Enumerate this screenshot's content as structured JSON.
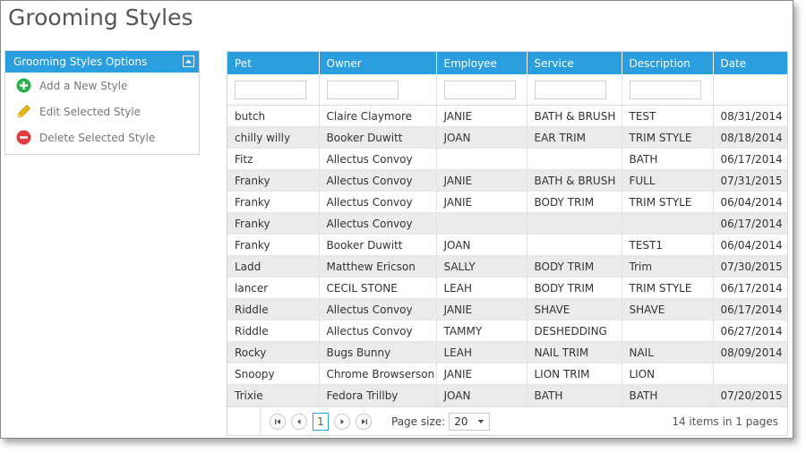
{
  "page": {
    "title": "Grooming Styles"
  },
  "sidebar": {
    "header": "Grooming Styles Options",
    "items": [
      {
        "label": "Add a New Style",
        "icon": "add-circle-icon",
        "color": "#2bb24c"
      },
      {
        "label": "Edit Selected Style",
        "icon": "pencil-icon",
        "color": "#e8b90c"
      },
      {
        "label": "Delete Selected Style",
        "icon": "delete-circle-icon",
        "color": "#e23b3b"
      }
    ]
  },
  "grid": {
    "columns": [
      "Pet",
      "Owner",
      "Employee",
      "Service",
      "Description",
      "Date"
    ],
    "rows": [
      [
        "butch",
        "Claire Claymore",
        "JANIE",
        "BATH & BRUSH",
        "TEST",
        "08/31/2014"
      ],
      [
        "chilly willy",
        "Booker Duwitt",
        "JOAN",
        "EAR TRIM",
        "TRIM STYLE",
        "08/18/2014"
      ],
      [
        "Fitz",
        "Allectus Convoy",
        "",
        "",
        "BATH",
        "06/17/2014"
      ],
      [
        "Franky",
        "Allectus Convoy",
        "JANIE",
        "BATH & BRUSH",
        "FULL",
        "07/31/2015"
      ],
      [
        "Franky",
        "Allectus Convoy",
        "JANIE",
        "BODY TRIM",
        "TRIM STYLE",
        "06/04/2014"
      ],
      [
        "Franky",
        "Allectus Convoy",
        "",
        "",
        "",
        "06/17/2014"
      ],
      [
        "Franky",
        "Booker Duwitt",
        "JOAN",
        "",
        "TEST1",
        "06/04/2014"
      ],
      [
        "Ladd",
        "Matthew Ericson",
        "SALLY",
        "BODY TRIM",
        "Trim",
        "07/30/2015"
      ],
      [
        "lancer",
        "CECIL STONE",
        "LEAH",
        "BODY TRIM",
        "TRIM STYLE",
        "06/17/2014"
      ],
      [
        "Riddle",
        "Allectus Convoy",
        "JANIE",
        "SHAVE",
        "SHAVE",
        "06/17/2014"
      ],
      [
        "Riddle",
        "Allectus Convoy",
        "TAMMY",
        "DESHEDDING",
        "",
        "06/27/2014"
      ],
      [
        "Rocky",
        "Bugs Bunny",
        "LEAH",
        "NAIL TRIM",
        "NAIL",
        "08/09/2014"
      ],
      [
        "Snoopy",
        "Chrome Browserson",
        "JANIE",
        "LION TRIM",
        "LION",
        ""
      ],
      [
        "Trixie",
        "Fedora Trillby",
        "JOAN",
        "BATH",
        "BATH",
        "07/20/2015"
      ]
    ]
  },
  "pager": {
    "current_page": "1",
    "page_size_label": "Page size:",
    "page_size": "20",
    "info": "14 items in 1 pages"
  },
  "colors": {
    "accent": "#2a9ede",
    "alt_row": "#ebebeb"
  }
}
